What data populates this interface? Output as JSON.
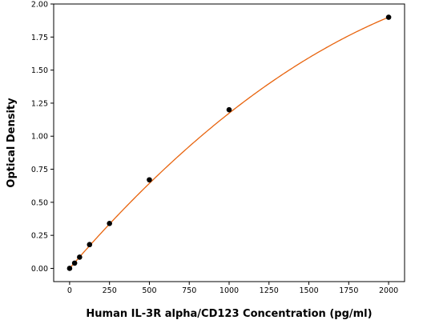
{
  "chart_data": {
    "type": "scatter",
    "title": "",
    "xlabel": "Human IL-3R alpha/CD123 Concentration (pg/ml)",
    "ylabel": "Optical Density",
    "xlim": [
      -100,
      2100
    ],
    "ylim": [
      -0.1,
      2.0
    ],
    "x_ticks": [
      0,
      250,
      500,
      750,
      1000,
      1250,
      1500,
      1750,
      2000
    ],
    "x_tick_labels": [
      "0",
      "250",
      "500",
      "750",
      "1000",
      "1250",
      "1500",
      "1750",
      "2000"
    ],
    "y_ticks": [
      0.0,
      0.25,
      0.5,
      0.75,
      1.0,
      1.25,
      1.5,
      1.75,
      2.0
    ],
    "y_tick_labels": [
      "0.00",
      "0.25",
      "0.50",
      "0.75",
      "1.00",
      "1.25",
      "1.50",
      "1.75",
      "2.00"
    ],
    "grid": false,
    "points": {
      "x": [
        0,
        31.25,
        62.5,
        125,
        250,
        500,
        1000,
        2000
      ],
      "y": [
        0.0,
        0.04,
        0.085,
        0.18,
        0.34,
        0.67,
        1.2,
        1.9
      ],
      "color": "#000000"
    },
    "fit_curve": {
      "type": "polynomial",
      "coefficients": [
        0.0,
        0.001398,
        -2.24e-07
      ],
      "color": "#e8640e"
    }
  }
}
